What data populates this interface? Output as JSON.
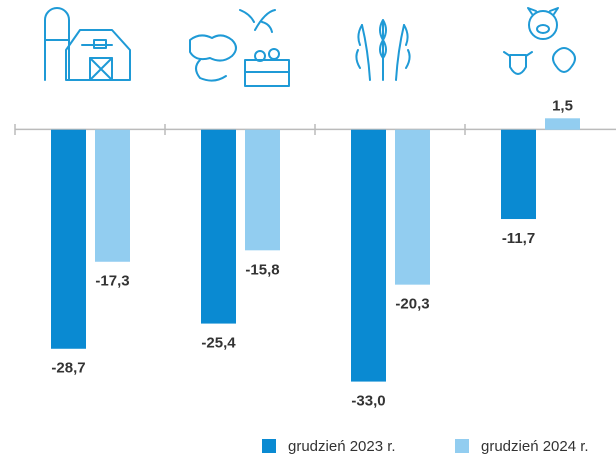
{
  "chart_data": {
    "type": "bar",
    "categories": [
      null,
      null,
      null,
      null
    ],
    "series": [
      {
        "name": "grudzień 2023 r.",
        "color": "#0a8ad2",
        "values": [
          -28.7,
          -25.4,
          -33.0,
          -11.7
        ],
        "value_labels": [
          "-28,7",
          "-25,4",
          "-33,0",
          "-11,7"
        ]
      },
      {
        "name": "grudzień 2024 r.",
        "color": "#92cdf0",
        "values": [
          -17.3,
          -15.8,
          -20.3,
          1.5
        ],
        "value_labels": [
          "-17,3",
          "-15,8",
          "-20,3",
          "1,5"
        ]
      }
    ],
    "ylim": [
      -40,
      17
    ]
  }
}
